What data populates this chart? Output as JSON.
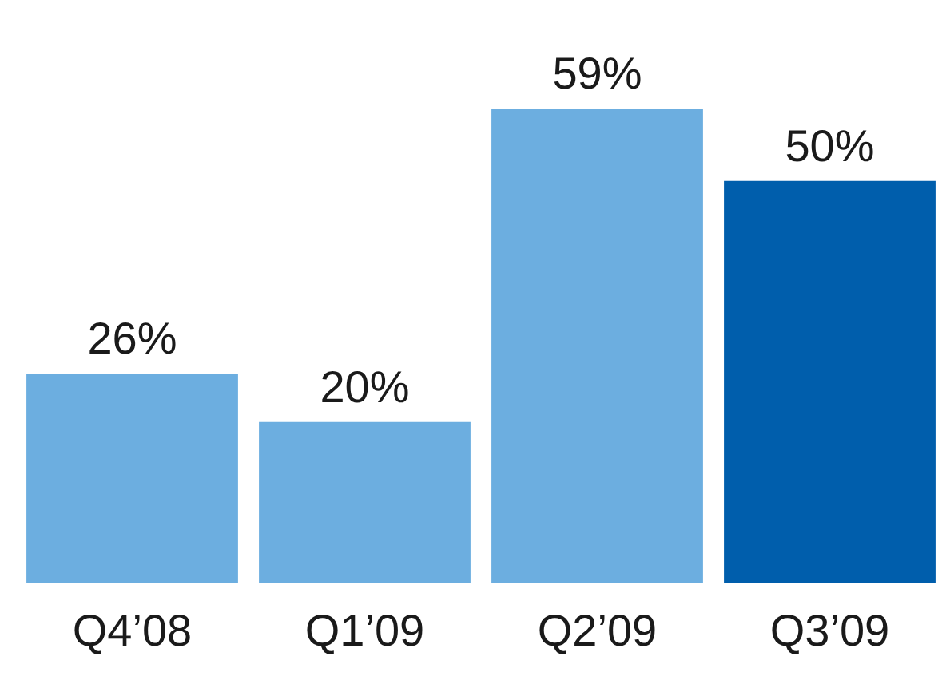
{
  "chart_data": {
    "type": "bar",
    "categories": [
      "Q4’08",
      "Q1’09",
      "Q2’09",
      "Q3’09"
    ],
    "values": [
      26,
      20,
      59,
      50
    ],
    "value_labels": [
      "26%",
      "20%",
      "59%",
      "50%"
    ],
    "colors": [
      "#6caee0",
      "#6caee0",
      "#6caee0",
      "#005eac"
    ]
  }
}
